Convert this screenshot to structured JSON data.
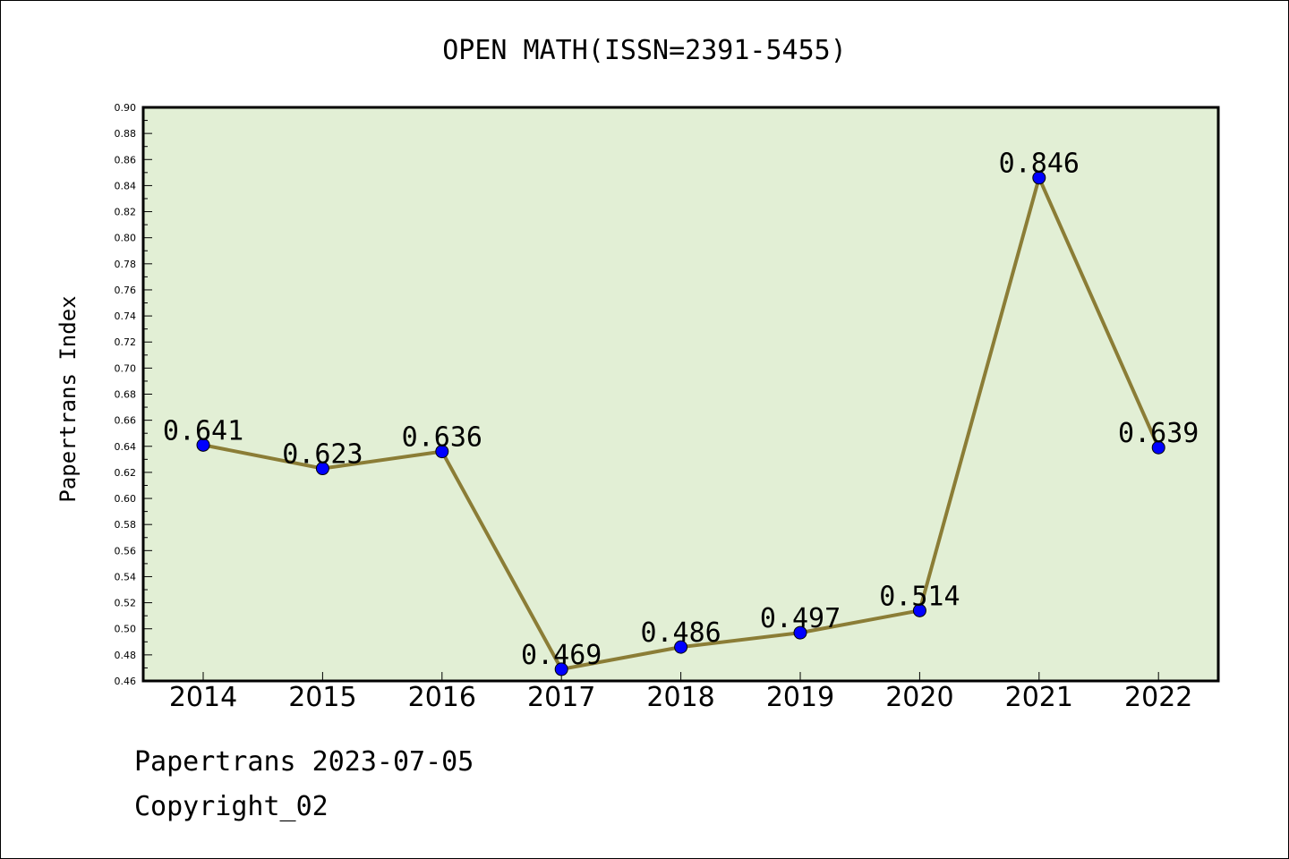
{
  "chart_data": {
    "type": "line",
    "title": "OPEN MATH(ISSN=2391-5455)",
    "ylabel": "Papertrans Index",
    "xlabel": "",
    "categories": [
      "2014",
      "2015",
      "2016",
      "2017",
      "2018",
      "2019",
      "2020",
      "2021",
      "2022"
    ],
    "values": [
      0.641,
      0.623,
      0.636,
      0.469,
      0.486,
      0.497,
      0.514,
      0.846,
      0.639
    ],
    "data_labels": [
      "0.641",
      "0.623",
      "0.636",
      "0.469",
      "0.486",
      "0.497",
      "0.514",
      "0.846",
      "0.639"
    ],
    "ylim": [
      0.46,
      0.9
    ],
    "yticks": [
      "0.46",
      "0.48",
      "0.50",
      "0.52",
      "0.54",
      "0.56",
      "0.58",
      "0.60",
      "0.62",
      "0.64",
      "0.66",
      "0.68",
      "0.70",
      "0.72",
      "0.74",
      "0.76",
      "0.78",
      "0.80",
      "0.82",
      "0.84",
      "0.86",
      "0.88",
      "0.90"
    ],
    "grid": false,
    "colors": {
      "plot_background": "#e2efd5",
      "line": "#8b7d36",
      "marker": "#0000ff"
    }
  },
  "footer": {
    "line1": "Papertrans 2023-07-05",
    "line2": "Copyright_02"
  }
}
